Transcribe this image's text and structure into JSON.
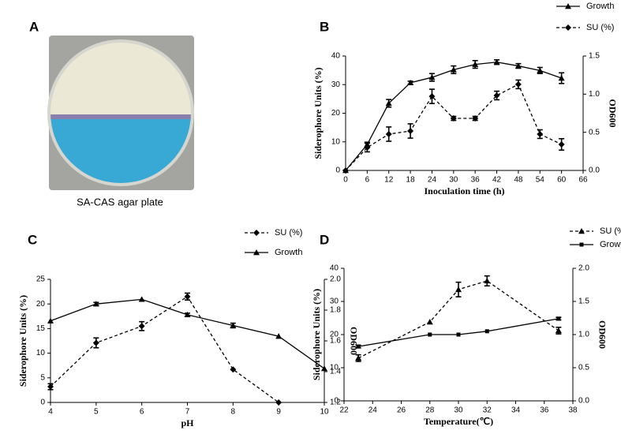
{
  "photo_panel": {
    "label": "A",
    "caption": "SA-CAS agar plate"
  },
  "chart_data": [
    {
      "type": "line",
      "panel_label": "B",
      "x_label": "Inoculation time (h)",
      "y_label": "Siderophore Units (%)",
      "y2_label": "OD600",
      "x": [
        0,
        6,
        12,
        18,
        24,
        30,
        36,
        42,
        48,
        54,
        60
      ],
      "xlim": [
        0,
        66
      ],
      "xticks": [
        0,
        6,
        12,
        18,
        24,
        30,
        36,
        42,
        48,
        54,
        60,
        66
      ],
      "ylim": [
        0,
        40
      ],
      "yticks": [
        0,
        10,
        20,
        30,
        40
      ],
      "y2lim": [
        0,
        1.5
      ],
      "y2ticks": [
        {
          "value": 0,
          "label": "0.0"
        },
        0.5,
        {
          "value": 1,
          "label": "1.0"
        },
        1.5
      ],
      "series": [
        {
          "name": "Growth",
          "color": "#000000",
          "axis": "y2",
          "marker": "triangle",
          "line_style": "solid",
          "values": [
            0,
            0.34,
            0.88,
            1.15,
            1.22,
            1.32,
            1.39,
            1.42,
            1.37,
            1.31,
            1.21
          ],
          "errors": [
            null,
            0.03,
            0.05,
            0.02,
            0.05,
            0.05,
            0.05,
            0.03,
            0.03,
            0.04,
            0.07
          ]
        },
        {
          "name": "SU (%)",
          "color": "#000000",
          "axis": "y",
          "marker": "diamond",
          "line_style": "dashed",
          "values": [
            0,
            8,
            12.7,
            13.8,
            25.9,
            18.2,
            18.2,
            26.2,
            30.1,
            12.7,
            9.1
          ],
          "errors": [
            null,
            1.5,
            2.5,
            2.5,
            2.5,
            0.7,
            0.7,
            1.5,
            1.5,
            1.5,
            2
          ]
        }
      ]
    },
    {
      "type": "line",
      "panel_label": "C",
      "x_label": "pH",
      "y_label": "Siderophore Units (%)",
      "y2_label": "OD600",
      "x": [
        4,
        5,
        6,
        7,
        8,
        9,
        10
      ],
      "xlim": [
        4,
        10
      ],
      "xticks": [
        4,
        5,
        6,
        7,
        8,
        9,
        10
      ],
      "ylim": [
        0,
        25
      ],
      "yticks": [
        0,
        5,
        10,
        15,
        20,
        25
      ],
      "y2lim": [
        1.2,
        2
      ],
      "y2ticks": [
        1.2,
        1.4,
        1.6,
        1.8,
        {
          "value": 2,
          "label": "2.0"
        }
      ],
      "series": [
        {
          "name": "SU (%)",
          "color": "#000000",
          "axis": "y",
          "marker": "diamond",
          "line_style": "dashed",
          "values": [
            3.2,
            12.1,
            15.5,
            21.5,
            6.7,
            0,
            null
          ],
          "errors": [
            0.6,
            1.0,
            0.9,
            0.7,
            null,
            null,
            null
          ]
        },
        {
          "name": "Growth",
          "color": "#000000",
          "axis": "y2",
          "marker": "triangle",
          "line_style": "solid",
          "values": [
            1.73,
            1.84,
            1.87,
            1.77,
            1.7,
            1.63,
            1.42
          ],
          "errors": [
            null,
            0.01,
            null,
            0.01,
            0.015,
            null,
            null
          ]
        }
      ]
    },
    {
      "type": "line",
      "panel_label": "D",
      "x_label": "Temperature(℃)",
      "y_label": "Siderophore Units (%)",
      "y2_label": "OD600",
      "x": [
        23,
        28,
        30,
        32,
        37
      ],
      "xlim": [
        22,
        38
      ],
      "xticks": [
        22,
        24,
        26,
        28,
        30,
        32,
        34,
        36,
        38
      ],
      "ylim": [
        0,
        40
      ],
      "yticks": [
        0,
        10,
        20,
        30,
        40
      ],
      "y2lim": [
        0,
        2
      ],
      "y2ticks": [
        {
          "value": 0,
          "label": "0.0"
        },
        0.5,
        {
          "value": 1,
          "label": "1.0"
        },
        1.5,
        {
          "value": 2,
          "label": "2.0"
        }
      ],
      "series": [
        {
          "name": "SU (%)",
          "color": "#000000",
          "axis": "y",
          "marker": "triangle",
          "line_style": "dashed",
          "values": [
            12.9,
            23.8,
            33.6,
            36.2,
            21.2
          ],
          "errors": [
            1,
            null,
            2.2,
            1.5,
            1
          ]
        },
        {
          "name": "Growth",
          "color": "#000000",
          "axis": "y2",
          "marker": "square",
          "line_style": "solid",
          "values": [
            0.82,
            1,
            1,
            1.05,
            1.24
          ],
          "errors": [
            0.02,
            null,
            null,
            null,
            0.02
          ]
        }
      ]
    }
  ]
}
